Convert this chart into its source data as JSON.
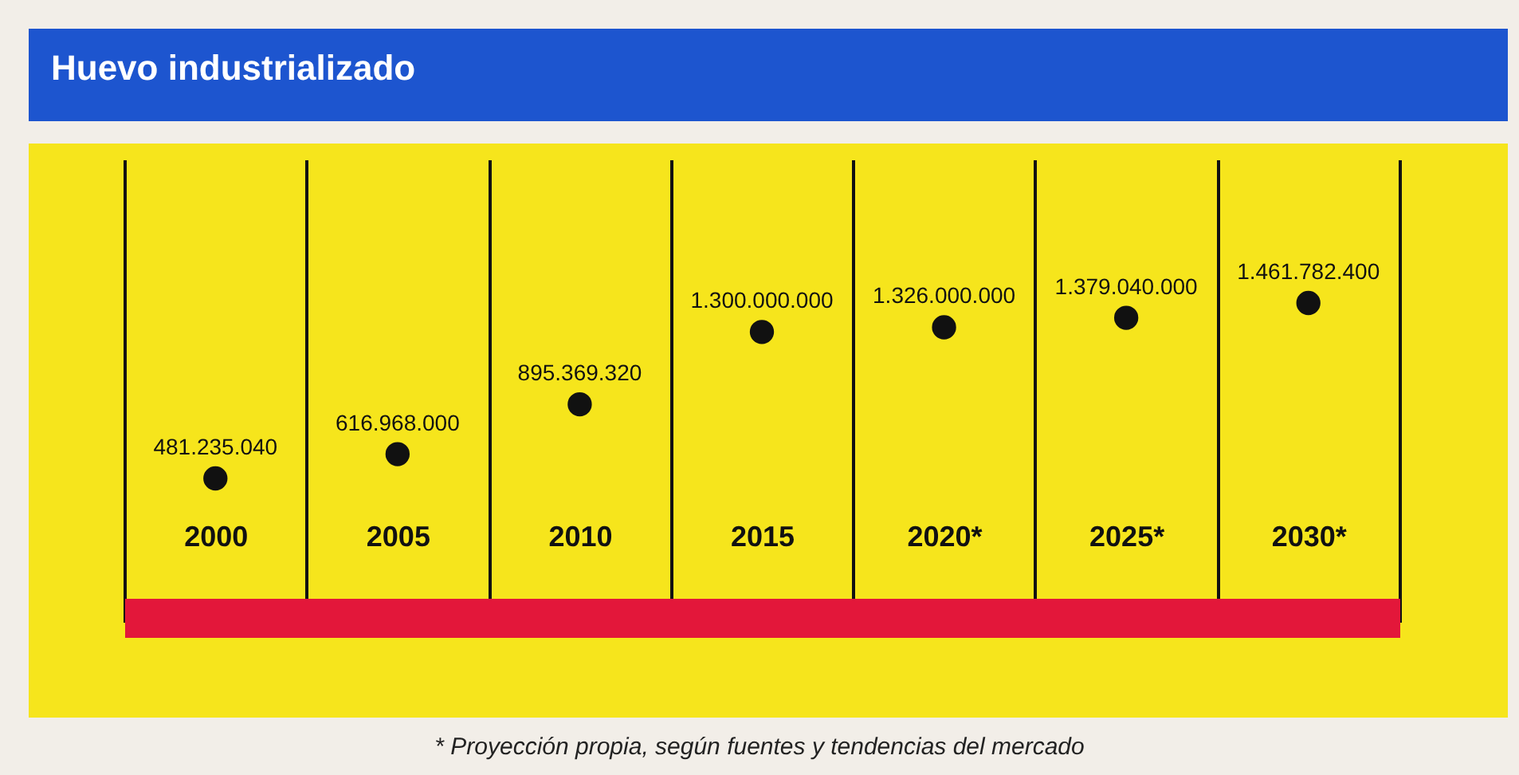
{
  "chart_data": {
    "type": "scatter",
    "title": "Huevo industrializado",
    "categories": [
      "2000",
      "2005",
      "2010",
      "2015",
      "2020*",
      "2025*",
      "2030*"
    ],
    "values": [
      481235040,
      616968000,
      895369320,
      1300000000,
      1326000000,
      1379040000,
      1461782400
    ],
    "value_labels": [
      "481.235.040",
      "616.968.000",
      "895.369.320",
      "1.300.000.000",
      "1.326.000.000",
      "1.379.040.000",
      "1.461.782.400"
    ],
    "color": "#111111",
    "marker": "circle",
    "grid": "x",
    "annotations": [
      "* Proyección propia, según fuentes y tendencias del mercado"
    ]
  }
}
